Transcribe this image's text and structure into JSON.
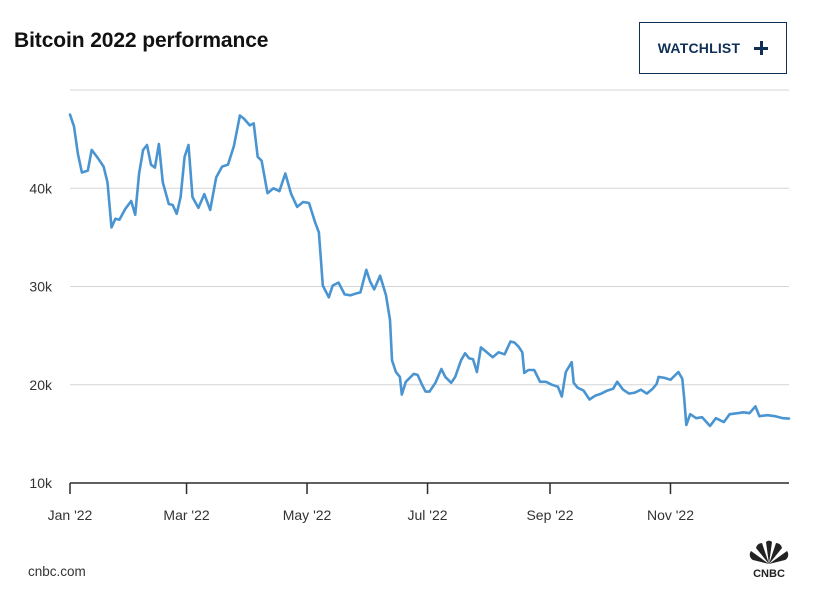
{
  "watchlist_label": "WATCHLIST",
  "footer": {
    "source": "cnbc.com",
    "logo_text": "CNBC"
  },
  "colors": {
    "line": "#4a95d1",
    "grid": "#d6d6d6",
    "axis": "#2b2b2b",
    "button_border": "#0f2f54"
  },
  "icons": {
    "watchlist": "plus-icon",
    "brand": "cnbc-peacock-icon"
  },
  "chart_data": {
    "type": "line",
    "title": "Bitcoin 2022 performance",
    "xlabel": "",
    "ylabel": "",
    "y_ticks": [
      {
        "value": 10000,
        "label": "10k"
      },
      {
        "value": 20000,
        "label": "20k"
      },
      {
        "value": 30000,
        "label": "30k"
      },
      {
        "value": 40000,
        "label": "40k"
      }
    ],
    "x_ticks": [
      {
        "date": "2022-01-01",
        "label": "Jan '22"
      },
      {
        "date": "2022-03-01",
        "label": "Mar '22"
      },
      {
        "date": "2022-05-01",
        "label": "May '22"
      },
      {
        "date": "2022-07-01",
        "label": "Jul '22"
      },
      {
        "date": "2022-09-01",
        "label": "Sep '22"
      },
      {
        "date": "2022-11-01",
        "label": "Nov '22"
      }
    ],
    "ylim": [
      10000,
      50000
    ],
    "xlim": [
      "2022-01-01",
      "2022-12-31"
    ],
    "grid": "horizontal",
    "series": [
      {
        "points": [
          [
            "2022-01-01",
            47500
          ],
          [
            "2022-01-03",
            46300
          ],
          [
            "2022-01-05",
            43500
          ],
          [
            "2022-01-07",
            41600
          ],
          [
            "2022-01-10",
            41800
          ],
          [
            "2022-01-12",
            43900
          ],
          [
            "2022-01-15",
            43100
          ],
          [
            "2022-01-18",
            42200
          ],
          [
            "2022-01-20",
            40600
          ],
          [
            "2022-01-22",
            36000
          ],
          [
            "2022-01-24",
            36900
          ],
          [
            "2022-01-26",
            36800
          ],
          [
            "2022-01-29",
            37900
          ],
          [
            "2022-02-01",
            38700
          ],
          [
            "2022-02-03",
            37300
          ],
          [
            "2022-02-05",
            41500
          ],
          [
            "2022-02-07",
            43900
          ],
          [
            "2022-02-09",
            44400
          ],
          [
            "2022-02-11",
            42400
          ],
          [
            "2022-02-13",
            42100
          ],
          [
            "2022-02-15",
            44500
          ],
          [
            "2022-02-17",
            40600
          ],
          [
            "2022-02-20",
            38400
          ],
          [
            "2022-02-22",
            38300
          ],
          [
            "2022-02-24",
            37400
          ],
          [
            "2022-02-26",
            39100
          ],
          [
            "2022-02-28",
            43200
          ],
          [
            "2022-03-02",
            44400
          ],
          [
            "2022-03-04",
            39100
          ],
          [
            "2022-03-07",
            38000
          ],
          [
            "2022-03-10",
            39400
          ],
          [
            "2022-03-13",
            37800
          ],
          [
            "2022-03-16",
            41100
          ],
          [
            "2022-03-19",
            42200
          ],
          [
            "2022-03-22",
            42400
          ],
          [
            "2022-03-25",
            44300
          ],
          [
            "2022-03-28",
            47400
          ],
          [
            "2022-03-30",
            47100
          ],
          [
            "2022-04-02",
            46400
          ],
          [
            "2022-04-04",
            46600
          ],
          [
            "2022-04-06",
            43200
          ],
          [
            "2022-04-08",
            42800
          ],
          [
            "2022-04-11",
            39500
          ],
          [
            "2022-04-14",
            40000
          ],
          [
            "2022-04-17",
            39700
          ],
          [
            "2022-04-20",
            41500
          ],
          [
            "2022-04-23",
            39400
          ],
          [
            "2022-04-26",
            38100
          ],
          [
            "2022-04-29",
            38600
          ],
          [
            "2022-05-02",
            38500
          ],
          [
            "2022-05-05",
            36600
          ],
          [
            "2022-05-07",
            35500
          ],
          [
            "2022-05-09",
            30100
          ],
          [
            "2022-05-12",
            28900
          ],
          [
            "2022-05-14",
            30100
          ],
          [
            "2022-05-17",
            30400
          ],
          [
            "2022-05-20",
            29200
          ],
          [
            "2022-05-23",
            29100
          ],
          [
            "2022-05-26",
            29300
          ],
          [
            "2022-05-28",
            29400
          ],
          [
            "2022-05-31",
            31700
          ],
          [
            "2022-06-02",
            30500
          ],
          [
            "2022-06-04",
            29700
          ],
          [
            "2022-06-07",
            31100
          ],
          [
            "2022-06-10",
            29100
          ],
          [
            "2022-06-12",
            26600
          ],
          [
            "2022-06-13",
            22500
          ],
          [
            "2022-06-15",
            21300
          ],
          [
            "2022-06-17",
            20800
          ],
          [
            "2022-06-18",
            19000
          ],
          [
            "2022-06-20",
            20300
          ],
          [
            "2022-06-22",
            20700
          ],
          [
            "2022-06-24",
            21100
          ],
          [
            "2022-06-26",
            21000
          ],
          [
            "2022-06-28",
            20100
          ],
          [
            "2022-06-30",
            19300
          ],
          [
            "2022-07-02",
            19300
          ],
          [
            "2022-07-05",
            20200
          ],
          [
            "2022-07-08",
            21600
          ],
          [
            "2022-07-10",
            20800
          ],
          [
            "2022-07-13",
            20200
          ],
          [
            "2022-07-15",
            20800
          ],
          [
            "2022-07-18",
            22500
          ],
          [
            "2022-07-20",
            23200
          ],
          [
            "2022-07-22",
            22700
          ],
          [
            "2022-07-24",
            22600
          ],
          [
            "2022-07-26",
            21300
          ],
          [
            "2022-07-28",
            23800
          ],
          [
            "2022-07-31",
            23300
          ],
          [
            "2022-08-03",
            22800
          ],
          [
            "2022-08-06",
            23300
          ],
          [
            "2022-08-09",
            23100
          ],
          [
            "2022-08-12",
            24400
          ],
          [
            "2022-08-14",
            24300
          ],
          [
            "2022-08-16",
            23900
          ],
          [
            "2022-08-18",
            23300
          ],
          [
            "2022-08-19",
            21200
          ],
          [
            "2022-08-21",
            21500
          ],
          [
            "2022-08-24",
            21500
          ],
          [
            "2022-08-27",
            20300
          ],
          [
            "2022-08-30",
            20300
          ],
          [
            "2022-09-02",
            20000
          ],
          [
            "2022-09-05",
            19800
          ],
          [
            "2022-09-07",
            18800
          ],
          [
            "2022-09-09",
            21300
          ],
          [
            "2022-09-12",
            22300
          ],
          [
            "2022-09-13",
            20200
          ],
          [
            "2022-09-15",
            19700
          ],
          [
            "2022-09-18",
            19400
          ],
          [
            "2022-09-21",
            18500
          ],
          [
            "2022-09-24",
            18900
          ],
          [
            "2022-09-27",
            19100
          ],
          [
            "2022-09-30",
            19400
          ],
          [
            "2022-10-03",
            19600
          ],
          [
            "2022-10-05",
            20300
          ],
          [
            "2022-10-08",
            19500
          ],
          [
            "2022-10-11",
            19100
          ],
          [
            "2022-10-14",
            19200
          ],
          [
            "2022-10-17",
            19500
          ],
          [
            "2022-10-20",
            19100
          ],
          [
            "2022-10-23",
            19600
          ],
          [
            "2022-10-25",
            20100
          ],
          [
            "2022-10-26",
            20800
          ],
          [
            "2022-10-29",
            20700
          ],
          [
            "2022-11-01",
            20500
          ],
          [
            "2022-11-05",
            21300
          ],
          [
            "2022-11-07",
            20600
          ],
          [
            "2022-11-08",
            18500
          ],
          [
            "2022-11-09",
            15900
          ],
          [
            "2022-11-11",
            17000
          ],
          [
            "2022-11-14",
            16600
          ],
          [
            "2022-11-17",
            16700
          ],
          [
            "2022-11-21",
            15800
          ],
          [
            "2022-11-24",
            16600
          ],
          [
            "2022-11-28",
            16200
          ],
          [
            "2022-12-01",
            17000
          ],
          [
            "2022-12-05",
            17100
          ],
          [
            "2022-12-08",
            17200
          ],
          [
            "2022-12-11",
            17100
          ],
          [
            "2022-12-14",
            17800
          ],
          [
            "2022-12-16",
            16800
          ],
          [
            "2022-12-20",
            16900
          ],
          [
            "2022-12-24",
            16800
          ],
          [
            "2022-12-28",
            16600
          ],
          [
            "2022-12-31",
            16550
          ]
        ]
      }
    ]
  }
}
